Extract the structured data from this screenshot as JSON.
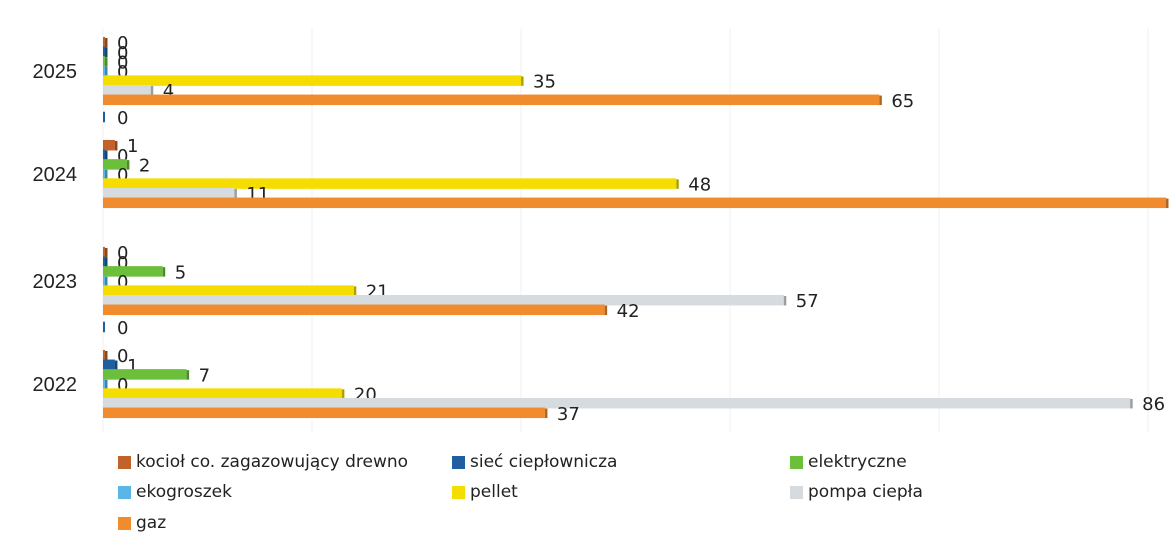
{
  "chart_data": {
    "type": "bar",
    "orientation": "horizontal",
    "title": "",
    "xlabel": "",
    "ylabel": "",
    "xlim": [
      0,
      89
    ],
    "grid": false,
    "legend_position": "bottom",
    "categories": [
      "2022",
      "2023",
      "2024",
      "2025"
    ],
    "series": [
      {
        "name": "kocioł co. zagazowujący drewno",
        "color": "#c0622a",
        "values": [
          0,
          0,
          1,
          0
        ]
      },
      {
        "name": "sieć ciepłownicza",
        "color": "#1f5fa0",
        "values": [
          1,
          0,
          0,
          0
        ]
      },
      {
        "name": "elektryczne",
        "color": "#6cbf3a",
        "values": [
          7,
          5,
          2,
          0
        ]
      },
      {
        "name": "ekogroszek",
        "color": "#5bb6e8",
        "values": [
          0,
          0,
          0,
          0
        ]
      },
      {
        "name": "pellet",
        "color": "#f5dd00",
        "values": [
          20,
          21,
          48,
          35
        ]
      },
      {
        "name": "pompa ciepła",
        "color": "#d5dbde",
        "values": [
          86,
          57,
          11,
          4
        ]
      },
      {
        "name": "gaz",
        "color": "#f08c2e",
        "values": [
          37,
          42,
          89,
          65
        ]
      }
    ],
    "extra_labels": [
      {
        "category": "2023",
        "value": 0,
        "text": "0"
      },
      {
        "category": "2025",
        "value": 0,
        "text": "0"
      }
    ]
  },
  "legend": {
    "items": [
      {
        "name": "kocioł co. zagazowujący drewno",
        "color": "#c0622a"
      },
      {
        "name": "sieć ciepłownicza",
        "color": "#1f5fa0"
      },
      {
        "name": "elektryczne",
        "color": "#6cbf3a"
      },
      {
        "name": "ekogroszek",
        "color": "#5bb6e8"
      },
      {
        "name": "pellet",
        "color": "#f5dd00"
      },
      {
        "name": "pompa ciepła",
        "color": "#d5dbde"
      },
      {
        "name": "gaz",
        "color": "#f08c2e"
      }
    ]
  }
}
